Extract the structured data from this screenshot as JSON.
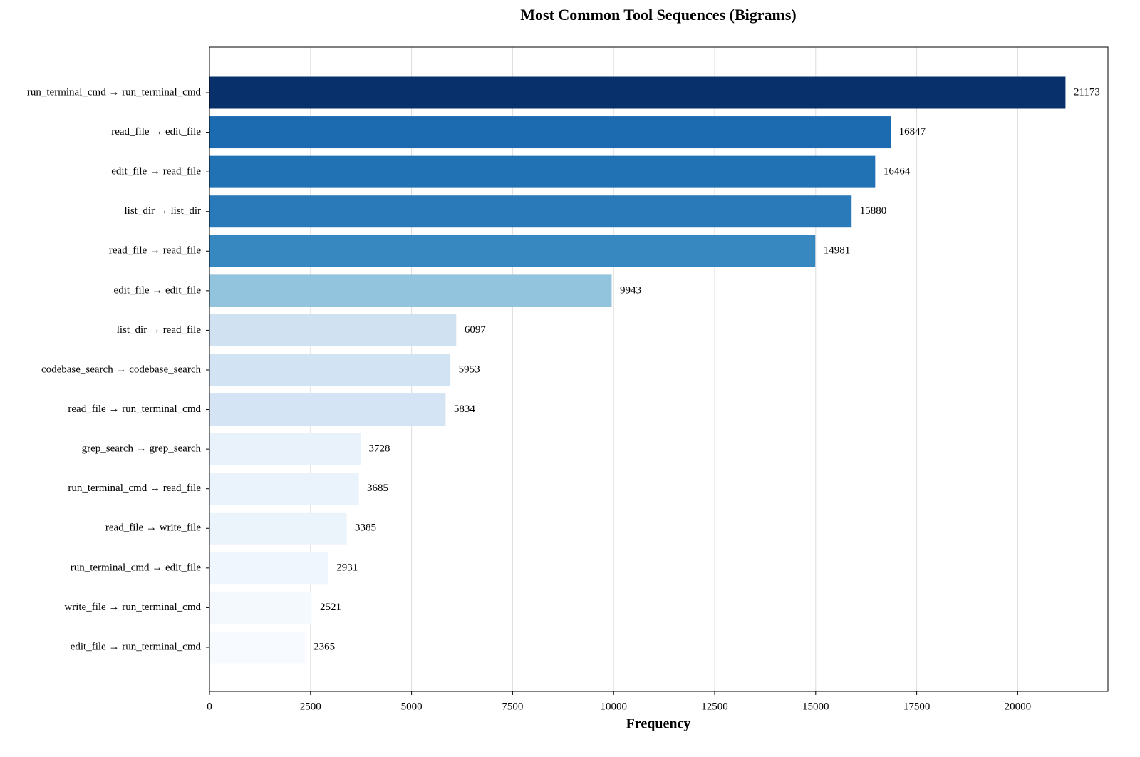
{
  "chart_data": {
    "type": "barh",
    "title": "Most Common Tool Sequences (Bigrams)",
    "xlabel": "Frequency",
    "categories": [
      "run_terminal_cmd → run_terminal_cmd",
      "read_file → edit_file",
      "edit_file → read_file",
      "list_dir → list_dir",
      "read_file → read_file",
      "edit_file → edit_file",
      "list_dir → read_file",
      "codebase_search → codebase_search",
      "read_file → run_terminal_cmd",
      "grep_search → grep_search",
      "run_terminal_cmd → read_file",
      "read_file → write_file",
      "run_terminal_cmd → edit_file",
      "write_file → run_terminal_cmd",
      "edit_file → run_terminal_cmd"
    ],
    "values": [
      21173,
      16847,
      16464,
      15880,
      14981,
      9943,
      6097,
      5953,
      5834,
      3728,
      3685,
      3385,
      2931,
      2521,
      2365
    ],
    "colors": [
      "#08306b",
      "#1c6ab0",
      "#2171b5",
      "#2a7aba",
      "#3787c0",
      "#93c4de",
      "#d0e1f2",
      "#d2e3f3",
      "#d4e4f4",
      "#e9f2fa",
      "#eaf2fb",
      "#ecf4fb",
      "#f0f6fd",
      "#f4f9fe",
      "#f7fbff"
    ],
    "xlim": [
      0,
      22232
    ],
    "xticks": [
      0,
      2500,
      5000,
      7500,
      10000,
      12500,
      15000,
      17500,
      20000
    ],
    "grid": true
  }
}
